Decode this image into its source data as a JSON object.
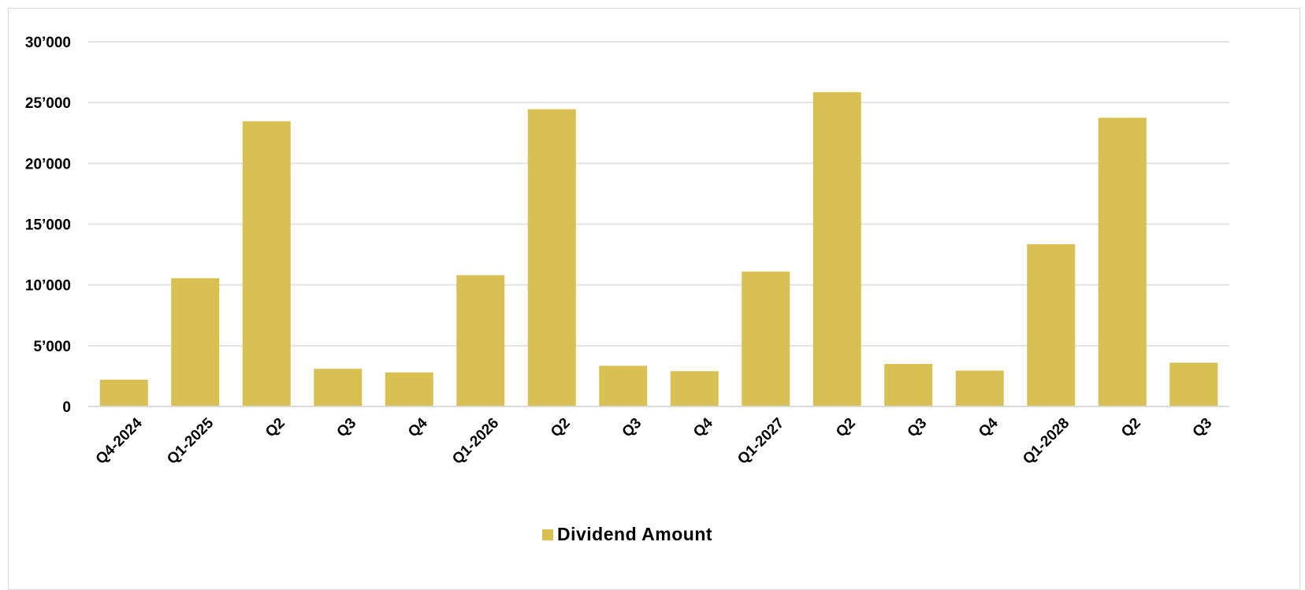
{
  "chart_data": {
    "type": "bar",
    "categories": [
      "Q4-2024",
      "Q1-2025",
      "Q2",
      "Q3",
      "Q4",
      "Q1-2026",
      "Q2",
      "Q3",
      "Q4",
      "Q1-2027",
      "Q2",
      "Q3",
      "Q4",
      "Q1-2028",
      "Q2",
      "Q3"
    ],
    "series": [
      {
        "name": "Dividend Amount",
        "color": "#D8C052",
        "values": [
          2200,
          10550,
          23450,
          3100,
          2800,
          10800,
          24450,
          3350,
          2900,
          11100,
          25850,
          3500,
          2950,
          13350,
          23750,
          3600
        ]
      }
    ],
    "title": "",
    "xlabel": "",
    "ylabel": "",
    "ylim": [
      0,
      30000
    ],
    "yticks": [
      0,
      5000,
      10000,
      15000,
      20000,
      25000,
      30000
    ],
    "ytick_labels": [
      "0",
      "5’000",
      "10’000",
      "15’000",
      "20’000",
      "25’000",
      "30’000"
    ],
    "grid": true,
    "gridline_color": "#e3e3e3",
    "legend_position": "bottom-center"
  }
}
